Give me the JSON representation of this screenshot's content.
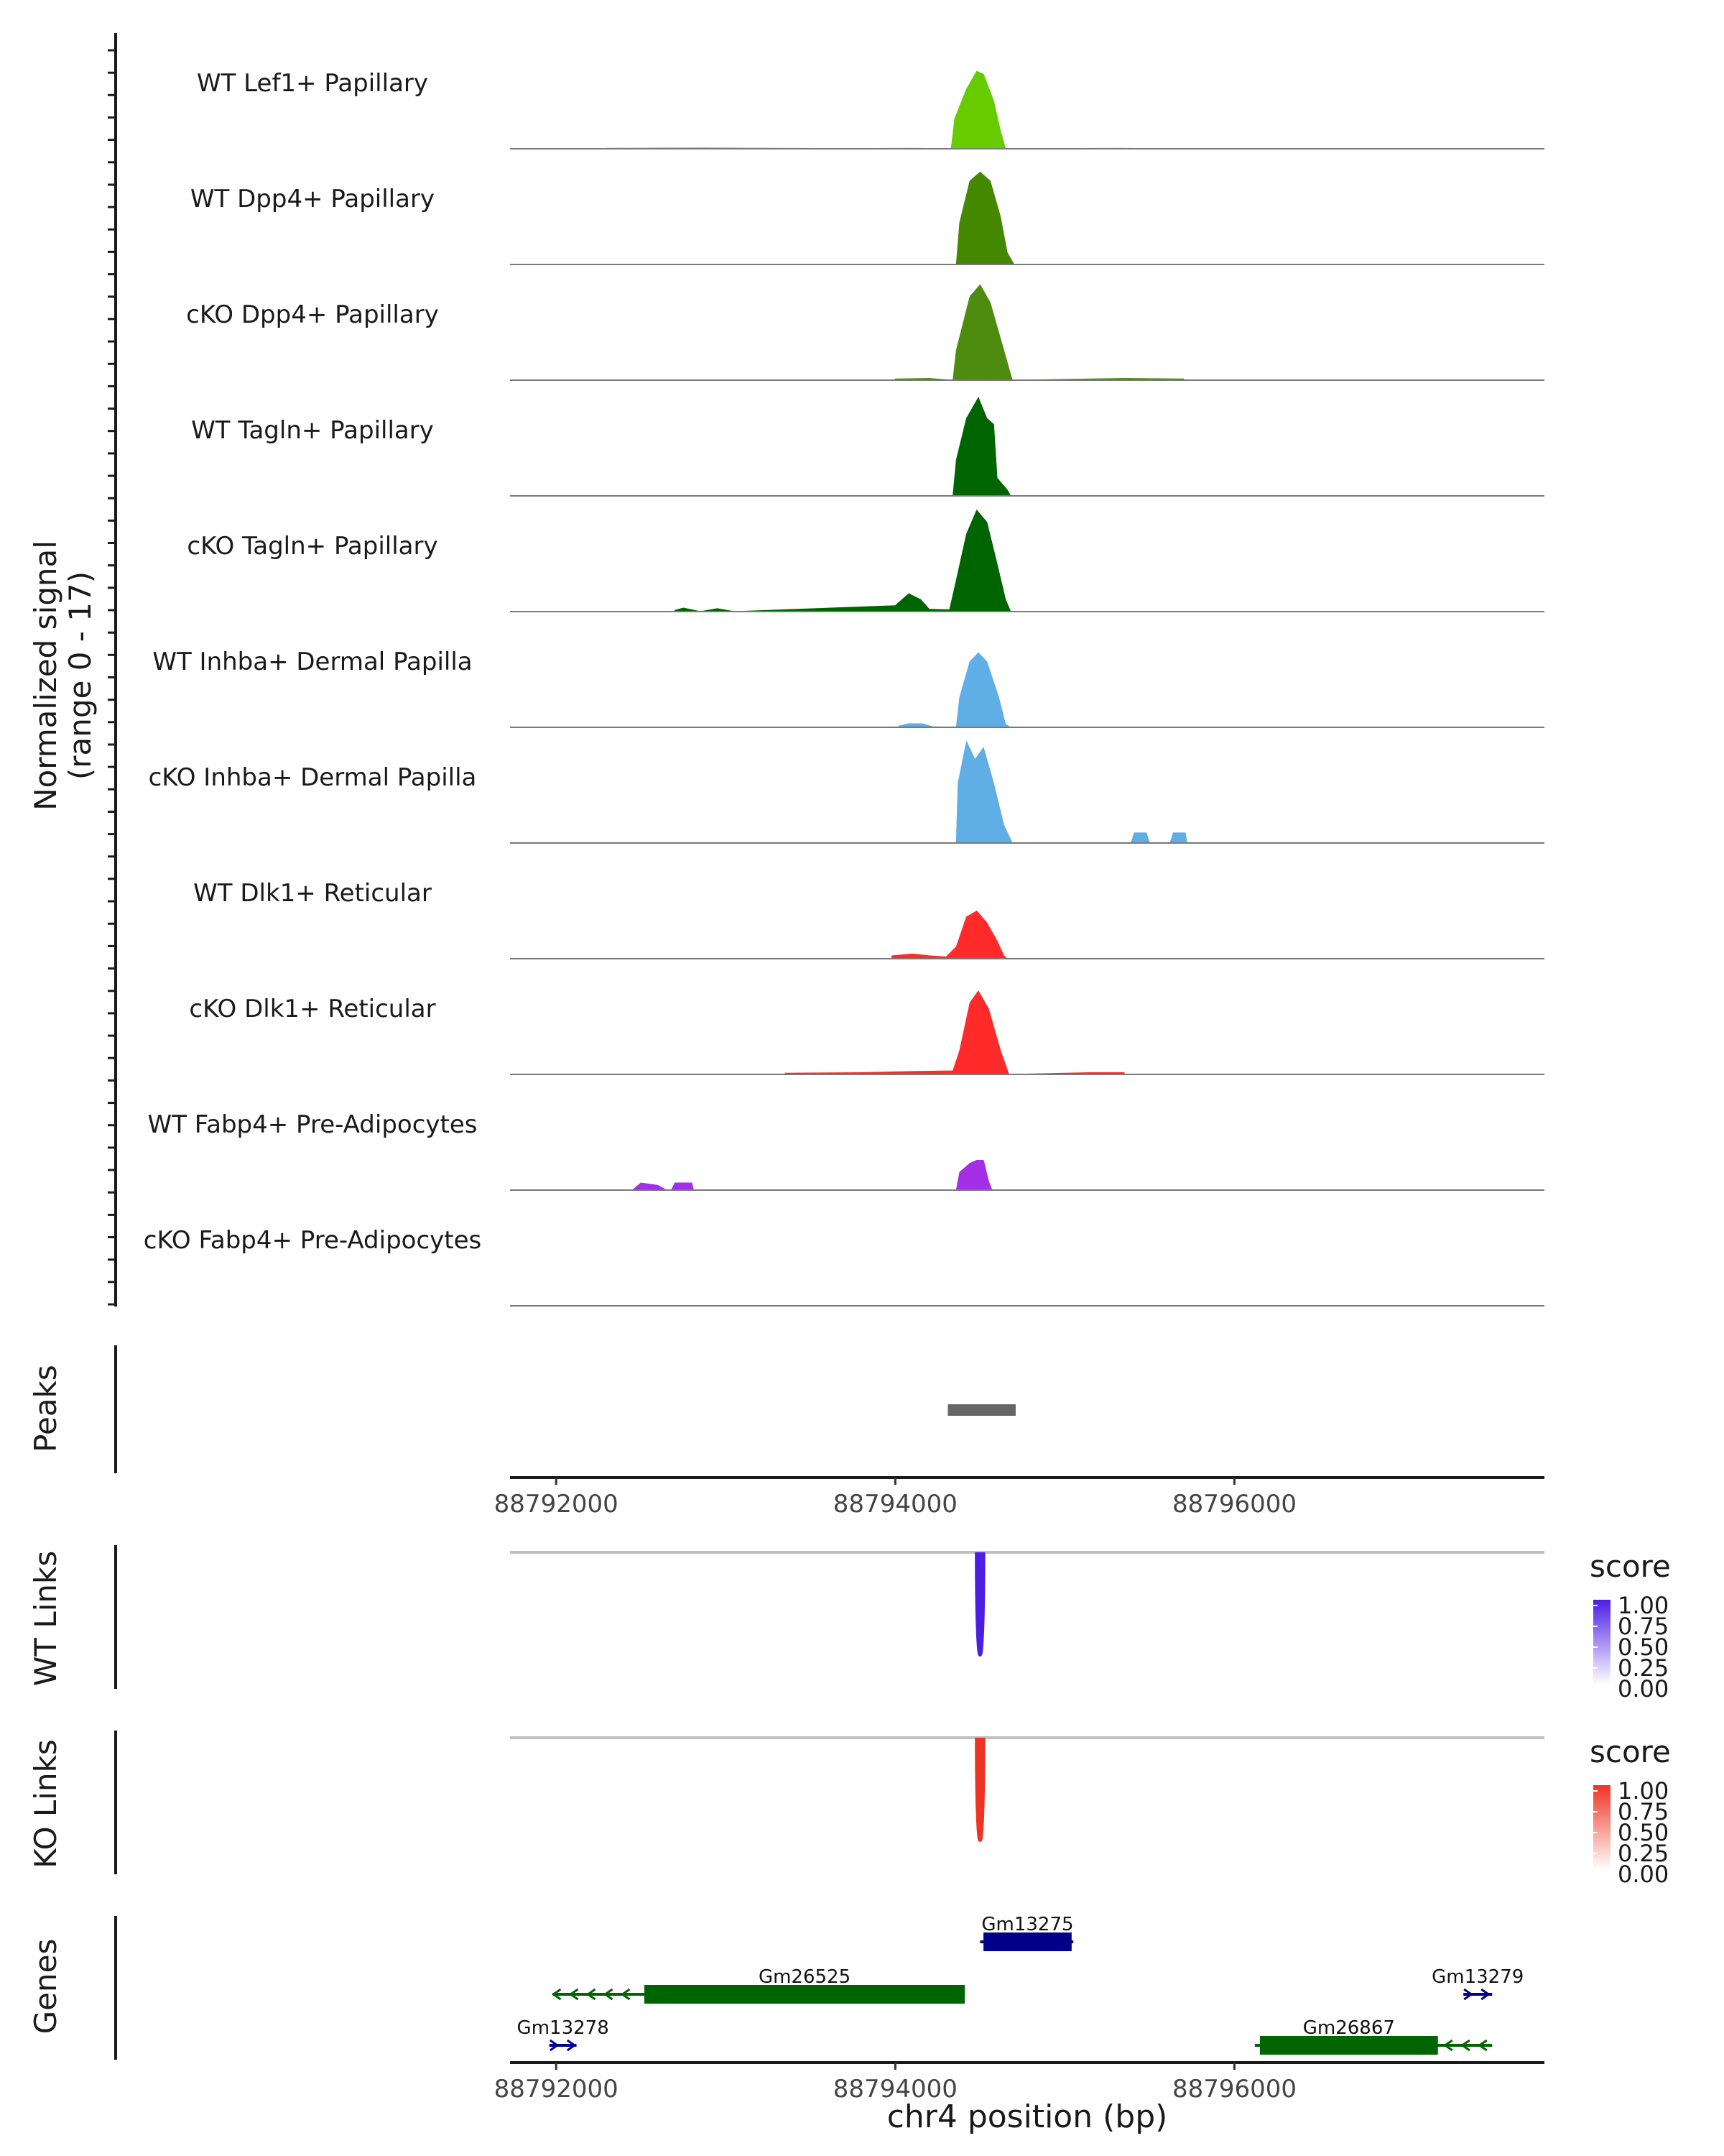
{
  "chart_data": {
    "type": "area",
    "title": "",
    "chromosome": "chr4",
    "xlabel": "chr4 position (bp)",
    "xlim": [
      88791728,
      88797828
    ],
    "xticks": [
      88792000,
      88794000,
      88796000
    ],
    "xtick_labels": [
      "88792000",
      "88794000",
      "88796000"
    ],
    "coverage": {
      "ylabel": "Normalized signal",
      "ylabel_range": "(range 0 - 17)",
      "ylim": [
        0,
        17
      ],
      "tracks": [
        {
          "name": "WT Lef1+ Papillary",
          "color": "#66cc00",
          "points": [
            [
              88792300,
              0.08
            ],
            [
              88792850,
              0.15
            ],
            [
              88793300,
              0.08
            ],
            [
              88793750,
              0.05
            ],
            [
              88794100,
              0.1
            ],
            [
              88794330,
              0
            ],
            [
              88794350,
              5
            ],
            [
              88794420,
              10
            ],
            [
              88794480,
              13
            ],
            [
              88794520,
              12.5
            ],
            [
              88794580,
              8
            ],
            [
              88794620,
              3
            ],
            [
              88794650,
              0
            ],
            [
              88795300,
              0.08
            ],
            [
              88795500,
              0.05
            ]
          ]
        },
        {
          "name": "WT Dpp4+ Papillary",
          "color": "#448800",
          "points": [
            [
              88794360,
              0
            ],
            [
              88794380,
              7
            ],
            [
              88794440,
              14
            ],
            [
              88794500,
              15.5
            ],
            [
              88794560,
              14
            ],
            [
              88794620,
              8
            ],
            [
              88794660,
              2
            ],
            [
              88794700,
              0
            ]
          ]
        },
        {
          "name": "cKO Dpp4+ Papillary",
          "color": "#4d8c0f",
          "points": [
            [
              88794000,
              0.2
            ],
            [
              88794200,
              0.3
            ],
            [
              88794340,
              0
            ],
            [
              88794360,
              5
            ],
            [
              88794440,
              14
            ],
            [
              88794500,
              16
            ],
            [
              88794560,
              13
            ],
            [
              88794640,
              5
            ],
            [
              88794690,
              0
            ],
            [
              88795350,
              0.3
            ],
            [
              88795700,
              0.2
            ]
          ]
        },
        {
          "name": "WT Tagln+ Papillary",
          "color": "#006400",
          "points": [
            [
              88794340,
              0
            ],
            [
              88794360,
              6
            ],
            [
              88794420,
              13
            ],
            [
              88794490,
              16.5
            ],
            [
              88794540,
              13
            ],
            [
              88794580,
              12
            ],
            [
              88794600,
              3
            ],
            [
              88794660,
              1
            ],
            [
              88794680,
              0
            ]
          ]
        },
        {
          "name": "cKO Tagln+ Papillary",
          "color": "#006400",
          "points": [
            [
              88792700,
              0.2
            ],
            [
              88792750,
              0.6
            ],
            [
              88792850,
              0
            ],
            [
              88792950,
              0.5
            ],
            [
              88793050,
              0
            ],
            [
              88794000,
              1
            ],
            [
              88794080,
              3
            ],
            [
              88794150,
              2
            ],
            [
              88794200,
              0.4
            ],
            [
              88794320,
              0.3
            ],
            [
              88794350,
              4
            ],
            [
              88794420,
              13
            ],
            [
              88794480,
              17
            ],
            [
              88794540,
              15
            ],
            [
              88794600,
              8
            ],
            [
              88794650,
              2
            ],
            [
              88794680,
              0
            ]
          ]
        },
        {
          "name": "WT Inhba+ Dermal Papilla",
          "color": "#5faee6",
          "points": [
            [
              88794020,
              0.2
            ],
            [
              88794080,
              0.6
            ],
            [
              88794160,
              0.6
            ],
            [
              88794220,
              0.1
            ],
            [
              88794360,
              0
            ],
            [
              88794380,
              5
            ],
            [
              88794440,
              11
            ],
            [
              88794490,
              12.5
            ],
            [
              88794540,
              11
            ],
            [
              88794610,
              5
            ],
            [
              88794650,
              0.5
            ],
            [
              88794680,
              0
            ]
          ]
        },
        {
          "name": "cKO Inhba+ Dermal Papilla",
          "color": "#5faee6",
          "points": [
            [
              88794360,
              0
            ],
            [
              88794370,
              10
            ],
            [
              88794420,
              17
            ],
            [
              88794470,
              14
            ],
            [
              88794520,
              16
            ],
            [
              88794580,
              10
            ],
            [
              88794640,
              3
            ],
            [
              88794690,
              0
            ],
            [
              88795390,
              0
            ],
            [
              88795410,
              1.7
            ],
            [
              88795480,
              1.7
            ],
            [
              88795500,
              0
            ],
            [
              88795620,
              0
            ],
            [
              88795640,
              1.7
            ],
            [
              88795710,
              1.7
            ],
            [
              88795720,
              0
            ]
          ]
        },
        {
          "name": "WT Dlk1+ Reticular",
          "color": "#ff2a2a",
          "points": [
            [
              88793980,
              0.5
            ],
            [
              88794100,
              0.8
            ],
            [
              88794200,
              0.5
            ],
            [
              88794300,
              0.3
            ],
            [
              88794360,
              2
            ],
            [
              88794420,
              7
            ],
            [
              88794480,
              8
            ],
            [
              88794540,
              6
            ],
            [
              88794600,
              3
            ],
            [
              88794640,
              0.5
            ],
            [
              88794660,
              0
            ]
          ]
        },
        {
          "name": "cKO Dlk1+ Reticular",
          "color": "#ff2a2a",
          "points": [
            [
              88793350,
              0.2
            ],
            [
              88793800,
              0.3
            ],
            [
              88794100,
              0.5
            ],
            [
              88794340,
              0.6
            ],
            [
              88794380,
              4
            ],
            [
              88794440,
              12
            ],
            [
              88794490,
              14
            ],
            [
              88794550,
              11
            ],
            [
              88794620,
              4
            ],
            [
              88794670,
              0
            ],
            [
              88795150,
              0.3
            ],
            [
              88795350,
              0.3
            ]
          ]
        },
        {
          "name": "WT Fabp4+ Pre-Adipocytes",
          "color": "#a32ee6",
          "points": [
            [
              88792450,
              0
            ],
            [
              88792500,
              1.2
            ],
            [
              88792600,
              0.8
            ],
            [
              88792650,
              0
            ],
            [
              88792680,
              0
            ],
            [
              88792700,
              1.2
            ],
            [
              88792800,
              1.2
            ],
            [
              88792810,
              0
            ],
            [
              88794360,
              0
            ],
            [
              88794380,
              3
            ],
            [
              88794440,
              4.5
            ],
            [
              88794480,
              5
            ],
            [
              88794520,
              5
            ],
            [
              88794550,
              1.5
            ],
            [
              88794570,
              0
            ]
          ]
        },
        {
          "name": "cKO Fabp4+ Pre-Adipocytes",
          "color": "#a32ee6",
          "points": []
        }
      ]
    },
    "peaks": {
      "label": "Peaks",
      "color": "#666666",
      "regions": [
        [
          88794310,
          88794710
        ]
      ]
    },
    "links": [
      {
        "label": "WT Links",
        "legend_title": "score",
        "color": "#4b1ee6",
        "legend_ticks": [
          "1.00",
          "0.75",
          "0.50",
          "0.25",
          "0.00"
        ],
        "arcs": [
          {
            "start": 88794480,
            "end": 88794520,
            "score": 1.0
          }
        ]
      },
      {
        "label": "KO Links",
        "legend_title": "score",
        "color": "#ee3424",
        "legend_ticks": [
          "1.00",
          "0.75",
          "0.50",
          "0.25",
          "0.00"
        ],
        "arcs": [
          {
            "start": 88794480,
            "end": 88794520,
            "score": 1.0
          }
        ]
      }
    ],
    "genes": {
      "label": "Genes",
      "items": [
        {
          "name": "Gm13275",
          "row": 0,
          "strand": "+",
          "color": "#00008b",
          "start": 88794500,
          "end": 88795050,
          "exons": [
            [
              88794520,
              88795040
            ]
          ]
        },
        {
          "name": "Gm26525",
          "row": 1,
          "strand": "-",
          "color": "#006400",
          "start": 88791980,
          "end": 88794410,
          "exons": [
            [
              88792520,
              88794410
            ]
          ]
        },
        {
          "name": "Gm13279",
          "row": 1,
          "strand": "+",
          "color": "#00008b",
          "start": 88797350,
          "end": 88797520,
          "exons": []
        },
        {
          "name": "Gm13278",
          "row": 2,
          "strand": "+",
          "color": "#00008b",
          "start": 88791960,
          "end": 88792120,
          "exons": []
        },
        {
          "name": "Gm26867",
          "row": 2,
          "strand": "-",
          "color": "#006400",
          "start": 88796120,
          "end": 88797520,
          "exons": [
            [
              88796150,
              88797200
            ]
          ]
        }
      ]
    }
  }
}
